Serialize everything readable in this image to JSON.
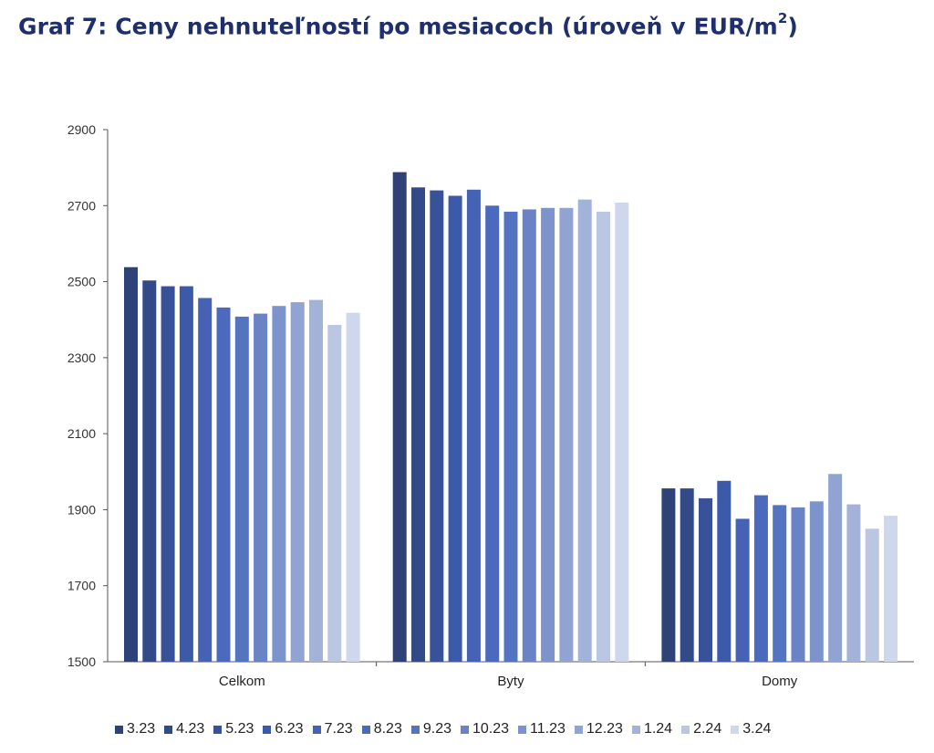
{
  "title": "Graf 7: Ceny nehnuteľností po mesiacoch (úroveň v EUR/m",
  "title_sup": "2",
  "title_close": ")",
  "chart_data": {
    "type": "bar",
    "title": "Graf 7: Ceny nehnuteľností po mesiacoch (úroveň v EUR/m2)",
    "xlabel": "",
    "ylabel": "",
    "ylim": [
      1500,
      2900
    ],
    "yticks": [
      1500,
      1700,
      1900,
      2100,
      2300,
      2500,
      2700,
      2900
    ],
    "legend_position": "bottom",
    "grid": false,
    "categories": [
      "Celkom",
      "Byty",
      "Domy"
    ],
    "series": [
      {
        "name": "3.23",
        "color": "#2e4278",
        "values": [
          2538,
          2788,
          1956
        ]
      },
      {
        "name": "4.23",
        "color": "#334a89",
        "values": [
          2503,
          2748,
          1956
        ]
      },
      {
        "name": "5.23",
        "color": "#38529a",
        "values": [
          2488,
          2740,
          1930
        ]
      },
      {
        "name": "6.23",
        "color": "#3d5aa9",
        "values": [
          2488,
          2726,
          1976
        ]
      },
      {
        "name": "7.23",
        "color": "#4562b5",
        "values": [
          2457,
          2742,
          1876
        ]
      },
      {
        "name": "8.23",
        "color": "#4b6abd",
        "values": [
          2432,
          2700,
          1938
        ]
      },
      {
        "name": "9.23",
        "color": "#5474c2",
        "values": [
          2408,
          2684,
          1912
        ]
      },
      {
        "name": "10.23",
        "color": "#6a83c6",
        "values": [
          2416,
          2690,
          1906
        ]
      },
      {
        "name": "11.23",
        "color": "#7d93cc",
        "values": [
          2436,
          2694,
          1922
        ]
      },
      {
        "name": "12.23",
        "color": "#90a3d3",
        "values": [
          2446,
          2694,
          1994
        ]
      },
      {
        "name": "1.24",
        "color": "#a3b2d9",
        "values": [
          2452,
          2716,
          1914
        ]
      },
      {
        "name": "2.24",
        "color": "#bbc6e2",
        "values": [
          2386,
          2684,
          1850
        ]
      },
      {
        "name": "3.24",
        "color": "#cfd7ec",
        "values": [
          2418,
          2708,
          1884
        ]
      }
    ]
  }
}
